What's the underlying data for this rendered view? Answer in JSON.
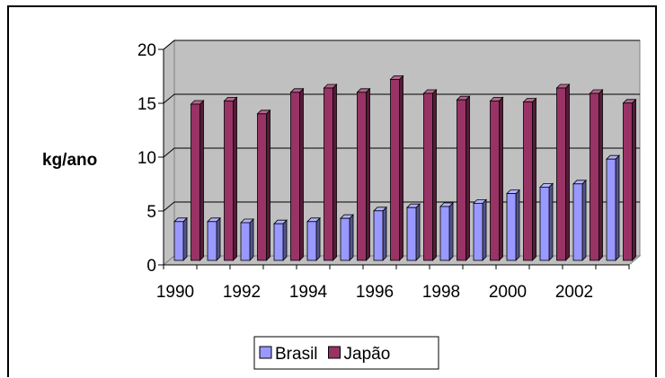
{
  "chart_data": {
    "type": "bar",
    "title": "",
    "xlabel": "",
    "ylabel": "kg/ano",
    "ylim": [
      0,
      20
    ],
    "yticks": [
      "0",
      "5",
      "10",
      "15",
      "20"
    ],
    "categories": [
      "1990",
      "1991",
      "1992",
      "1993",
      "1994",
      "1995",
      "1996",
      "1997",
      "1998",
      "1999",
      "2000",
      "2001",
      "2002",
      "2003"
    ],
    "xtick_labels": [
      "1990",
      "1992",
      "1994",
      "1996",
      "1998",
      "2000",
      "2002"
    ],
    "series": [
      {
        "name": "Brasil",
        "color": "#9999ff",
        "values": [
          3.6,
          3.6,
          3.5,
          3.4,
          3.6,
          3.9,
          4.6,
          4.9,
          5.0,
          5.3,
          6.2,
          6.8,
          7.1,
          9.4
        ]
      },
      {
        "name": "Japão",
        "color": "#993366",
        "values": [
          14.5,
          14.8,
          13.6,
          15.6,
          16.0,
          15.6,
          16.8,
          15.5,
          14.9,
          14.8,
          14.7,
          16.0,
          15.5,
          14.6
        ]
      }
    ],
    "grid": true,
    "style": "3d",
    "legend_position": "bottom"
  }
}
